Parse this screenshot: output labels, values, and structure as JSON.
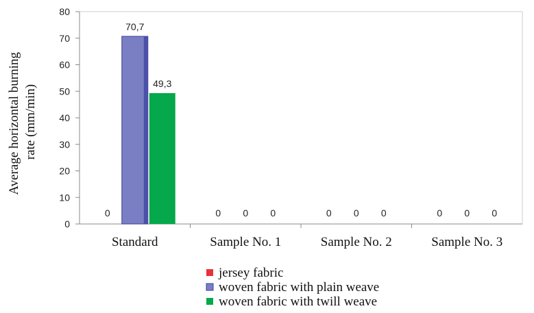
{
  "chart_data": {
    "type": "bar",
    "title": "",
    "xlabel": "",
    "ylabel_lines": [
      "Average horizontal burning",
      "rate (mm/min)"
    ],
    "ylim": [
      0,
      80
    ],
    "yticks": [
      0,
      10,
      20,
      30,
      40,
      50,
      60,
      70,
      80
    ],
    "grid": false,
    "legend_position": "bottom",
    "categories": [
      "Standard",
      "Sample No. 1",
      "Sample No. 2",
      "Sample No. 3"
    ],
    "series": [
      {
        "name": "jersey fabric",
        "color": "#e8323c",
        "values": [
          0,
          0,
          0,
          0
        ],
        "labels": [
          "0",
          "0",
          "0",
          "0"
        ]
      },
      {
        "name": "woven fabric with plain weave",
        "color": "#7a7fc4",
        "values": [
          70.7,
          0,
          0,
          0
        ],
        "labels": [
          "70,7",
          "0",
          "0",
          "0"
        ]
      },
      {
        "name": "woven fabric with twill weave",
        "color": "#05a84a",
        "values": [
          49.3,
          0,
          0,
          0
        ],
        "labels": [
          "49,3",
          "0",
          "0",
          "0"
        ]
      }
    ]
  }
}
